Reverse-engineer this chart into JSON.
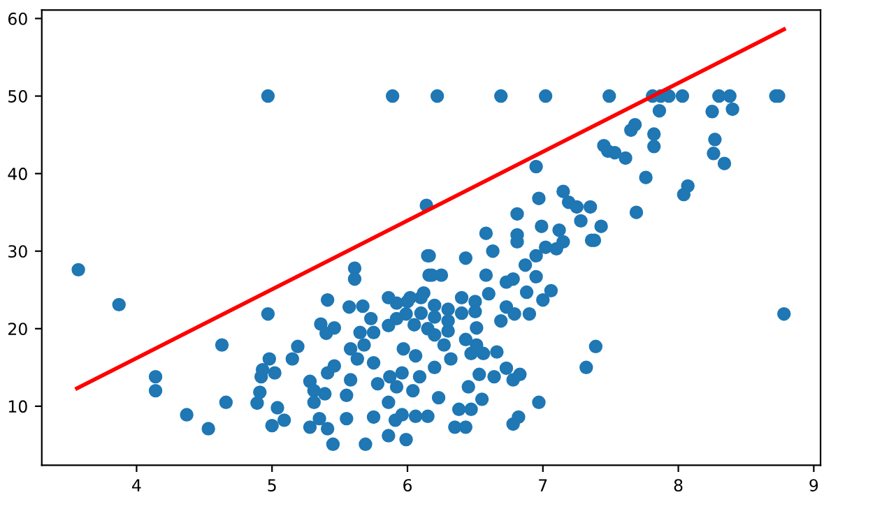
{
  "chart_data": {
    "type": "scatter",
    "xlim": [
      3.3,
      9.05
    ],
    "ylim": [
      2.4,
      61.1
    ],
    "xticks": [
      4,
      5,
      6,
      7,
      8,
      9
    ],
    "yticks": [
      10,
      20,
      30,
      40,
      50,
      60
    ],
    "grid": false,
    "legend": false,
    "series": [
      {
        "marker": "circle",
        "color": "#1f77b4",
        "x": [
          3.57,
          3.87,
          4.14,
          4.14,
          4.37,
          4.53,
          4.63,
          4.66,
          4.97,
          4.97,
          4.98,
          5.02,
          4.93,
          4.92,
          4.91,
          4.89,
          5.0,
          5.04,
          5.09,
          5.15,
          5.19,
          5.28,
          5.31,
          5.31,
          5.28,
          5.35,
          5.41,
          5.45,
          5.39,
          5.41,
          5.46,
          5.36,
          5.4,
          5.46,
          5.41,
          5.55,
          5.55,
          5.57,
          5.61,
          5.61,
          5.67,
          5.69,
          5.75,
          5.86,
          5.86,
          5.91,
          5.96,
          5.99,
          6.06,
          6.04,
          5.58,
          5.63,
          5.68,
          5.75,
          5.78,
          5.87,
          5.92,
          5.65,
          5.75,
          5.86,
          5.92,
          5.99,
          5.92,
          6.02,
          6.12,
          5.86,
          5.73,
          5.58,
          6.06,
          5.97,
          5.96,
          6.16,
          6.16,
          5.89,
          6.22,
          6.69,
          7.02,
          7.49,
          7.81,
          7.87,
          7.93,
          8.03,
          8.3,
          8.38,
          8.72,
          8.74,
          7.86,
          8.25,
          8.4,
          7.68,
          7.65,
          7.82,
          7.82,
          8.27,
          8.26,
          8.34,
          7.45,
          7.48,
          7.53,
          7.61,
          7.76,
          8.07,
          8.04,
          7.69,
          6.95,
          6.14,
          7.15,
          7.19,
          7.25,
          7.35,
          7.28,
          7.43,
          6.99,
          6.81,
          6.97,
          7.12,
          7.36,
          6.58,
          6.81,
          8.78,
          7.39,
          7.32,
          6.97,
          6.82,
          6.78,
          6.35,
          6.43,
          6.38,
          6.47,
          6.15,
          6.55,
          6.9,
          6.79,
          7.06,
          7.0,
          6.88,
          6.69,
          6.66,
          6.73,
          6.83,
          6.64,
          6.78,
          6.53,
          6.45,
          6.56,
          6.51,
          6.51,
          6.32,
          6.2,
          6.23,
          6.09,
          7.02,
          7.1,
          6.95,
          6.87,
          6.95,
          6.78,
          6.73,
          6.58,
          6.43,
          6.63,
          6.81,
          7.15,
          7.38,
          6.15,
          6.18,
          6.25,
          6.73,
          6.1,
          6.2,
          6.3,
          6.4,
          6.5,
          6.6,
          6.1,
          6.2,
          6.3,
          6.4,
          6.5,
          6.05,
          6.15,
          6.0,
          6.2,
          6.27,
          6.3,
          6.43,
          6.47
        ],
        "values": [
          27.6,
          23.1,
          13.8,
          12.0,
          8.9,
          7.1,
          17.9,
          10.5,
          50,
          21.9,
          16.1,
          14.3,
          14.7,
          13.8,
          11.8,
          10.4,
          7.5,
          9.8,
          8.2,
          16.1,
          17.7,
          13.2,
          12.0,
          10.5,
          7.3,
          8.4,
          7.1,
          5.1,
          11.6,
          14.3,
          15.2,
          20.6,
          19.4,
          20.1,
          23.7,
          8.4,
          11.4,
          22.8,
          27.8,
          26.4,
          22.9,
          5.1,
          8.6,
          10.5,
          6.2,
          8.2,
          8.9,
          5.7,
          8.7,
          12.0,
          13.4,
          16.1,
          17.9,
          15.6,
          12.9,
          13.8,
          12.5,
          19.5,
          19.5,
          20.4,
          21.3,
          21.9,
          23.3,
          24.0,
          24.6,
          24.0,
          21.3,
          17.4,
          16.5,
          17.4,
          14.3,
          29.4,
          26.9,
          50,
          50,
          50,
          50,
          50,
          50,
          50,
          50,
          50,
          50,
          50,
          50,
          50,
          48.1,
          48.0,
          48.3,
          46.3,
          45.6,
          45.1,
          43.5,
          44.4,
          42.6,
          41.3,
          43.6,
          42.9,
          42.7,
          42.0,
          39.5,
          38.4,
          37.3,
          35.0,
          40.9,
          35.9,
          37.7,
          36.3,
          35.7,
          35.7,
          33.9,
          33.2,
          33.2,
          34.8,
          36.8,
          32.7,
          31.4,
          32.3,
          32.1,
          21.9,
          17.7,
          15.0,
          10.5,
          8.6,
          7.7,
          7.3,
          7.3,
          9.6,
          9.6,
          8.7,
          10.9,
          21.9,
          21.9,
          24.9,
          23.7,
          24.7,
          21.0,
          17.0,
          14.9,
          14.1,
          13.8,
          13.4,
          14.1,
          12.5,
          16.8,
          20.1,
          17.9,
          16.1,
          15.0,
          11.1,
          13.8,
          30.5,
          30.3,
          29.4,
          28.2,
          26.7,
          26.4,
          26.0,
          26.9,
          29.1,
          30.0,
          31.2,
          31.2,
          31.4,
          29.4,
          26.9,
          26.9,
          22.8,
          24.0,
          23.0,
          22.5,
          24.0,
          23.5,
          24.5,
          22.0,
          21.5,
          21.0,
          22.0,
          22.2,
          20.5,
          20.0,
          23.5,
          19.2,
          17.9,
          19.7,
          18.6,
          16.8
        ]
      },
      {
        "type": "line",
        "color": "#ff0000",
        "x": [
          3.56,
          8.78
        ],
        "values": [
          12.3,
          58.6
        ]
      }
    ]
  }
}
